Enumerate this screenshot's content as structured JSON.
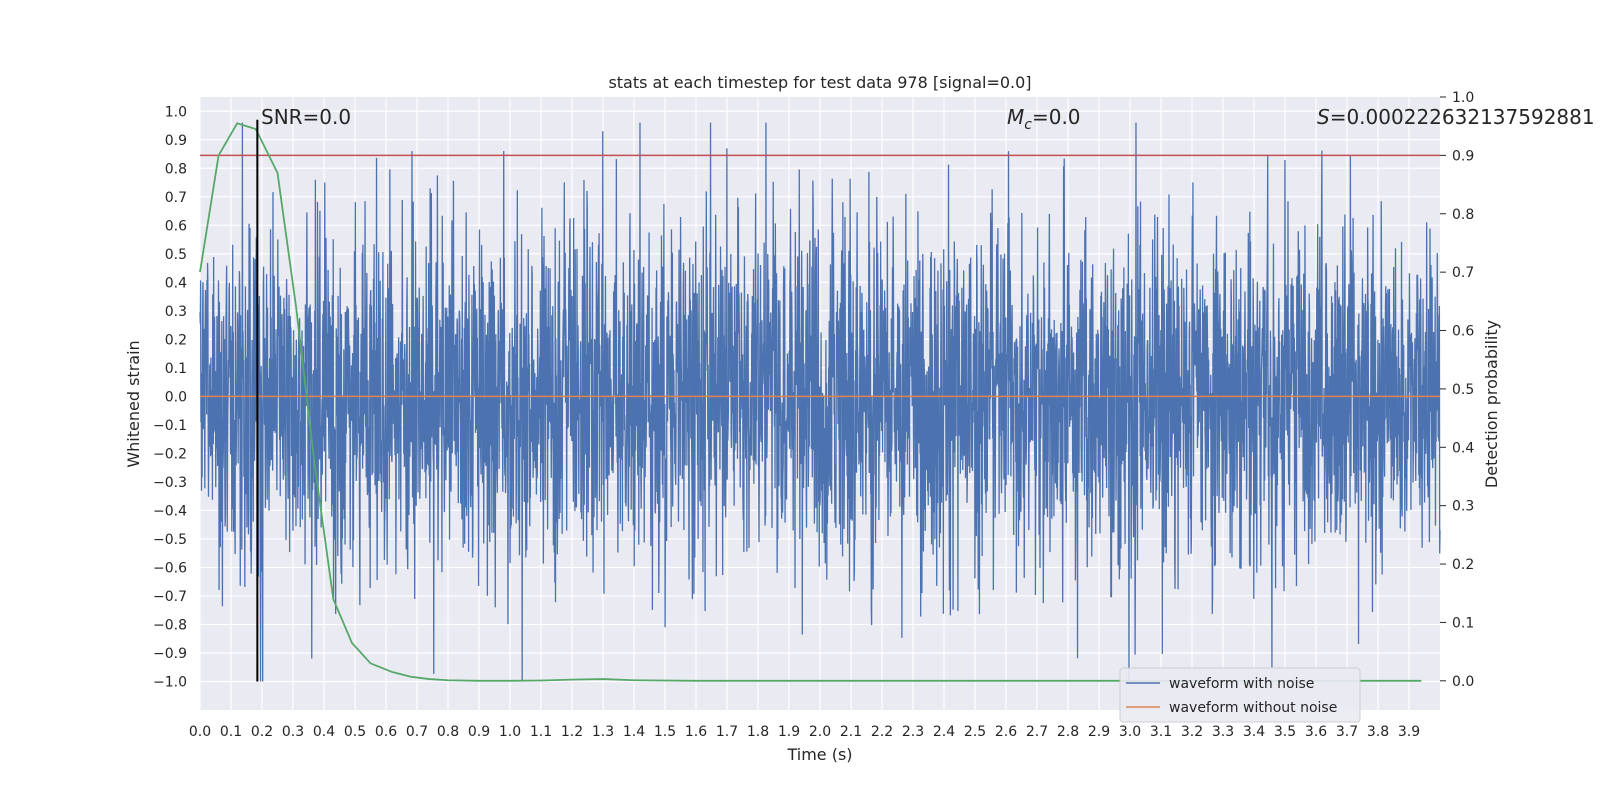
{
  "chart_data": {
    "type": "line",
    "title": "stats at each timestep for test data 978 [signal=0.0]",
    "xlabel": "Time (s)",
    "ylabel": "Whitened strain",
    "ylabel_right": "Detection probability",
    "xlim": [
      0.0,
      4.0
    ],
    "ylim": [
      -1.1,
      1.05
    ],
    "ylim_right": [
      -0.05,
      1.0
    ],
    "x_ticks": [
      "0.0",
      "0.1",
      "0.2",
      "0.3",
      "0.4",
      "0.5",
      "0.6",
      "0.7",
      "0.8",
      "0.9",
      "1.0",
      "1.1",
      "1.2",
      "1.3",
      "1.4",
      "1.5",
      "1.6",
      "1.7",
      "1.8",
      "1.9",
      "2.0",
      "2.1",
      "2.2",
      "2.3",
      "2.4",
      "2.5",
      "2.6",
      "2.7",
      "2.8",
      "2.9",
      "3.0",
      "3.1",
      "3.2",
      "3.3",
      "3.4",
      "3.5",
      "3.6",
      "3.7",
      "3.8",
      "3.9"
    ],
    "y_ticks": [
      "1.0",
      "0.9",
      "0.8",
      "0.7",
      "0.6",
      "0.5",
      "0.4",
      "0.3",
      "0.2",
      "0.1",
      "0.0",
      "−0.1",
      "−0.2",
      "−0.3",
      "−0.4",
      "−0.5",
      "−0.6",
      "−0.7",
      "−0.8",
      "−0.9",
      "−1.0"
    ],
    "y_ticks_right": [
      "1.0",
      "0.9",
      "0.8",
      "0.7",
      "0.6",
      "0.5",
      "0.4",
      "0.3",
      "0.2",
      "0.1",
      "0.0"
    ],
    "grid": true,
    "legend_position": "lower-right",
    "series": [
      {
        "name": "waveform with noise",
        "color": "#4c72b0",
        "axis": "left",
        "sample_count": 4096,
        "amplitude_std": 0.3,
        "peak_values": [
          0.96,
          -1.0,
          -1.0,
          0.86,
          0.93,
          0.87,
          0.86,
          -0.95
        ]
      },
      {
        "name": "waveform without noise",
        "color": "#dd8452",
        "axis": "left",
        "x": [
          0.0,
          4.0
        ],
        "y": [
          0.0,
          0.0
        ]
      },
      {
        "color": "#55a868",
        "axis": "right",
        "x": [
          0.0,
          0.06,
          0.12,
          0.18,
          0.25,
          0.31,
          0.37,
          0.43,
          0.49,
          0.55,
          0.62,
          0.68,
          0.74,
          0.8,
          0.9,
          1.0,
          1.1,
          1.2,
          1.3,
          1.4,
          1.6,
          2.0,
          2.5,
          3.0,
          3.5,
          3.94
        ],
        "y": [
          0.7,
          0.9,
          0.955,
          0.945,
          0.87,
          0.64,
          0.37,
          0.14,
          0.065,
          0.03,
          0.015,
          0.007,
          0.003,
          0.001,
          0.0,
          0.0,
          0.0005,
          0.002,
          0.003,
          0.001,
          0.0,
          0.0,
          0.0,
          0.0,
          0.0,
          0.0
        ]
      }
    ],
    "threshold_line": {
      "y_right": 0.9,
      "color": "#c44e52"
    },
    "marker_line": {
      "x": 0.185,
      "y_from": -1.0,
      "y_to": 0.97,
      "color": "#000000"
    },
    "annotations": [
      {
        "text": "SNR=0.0",
        "x": 0.2
      },
      {
        "text": "M_c=0.0",
        "x": 2.6
      },
      {
        "text": "S=0.000222632137592881",
        "x": 3.6
      }
    ]
  }
}
